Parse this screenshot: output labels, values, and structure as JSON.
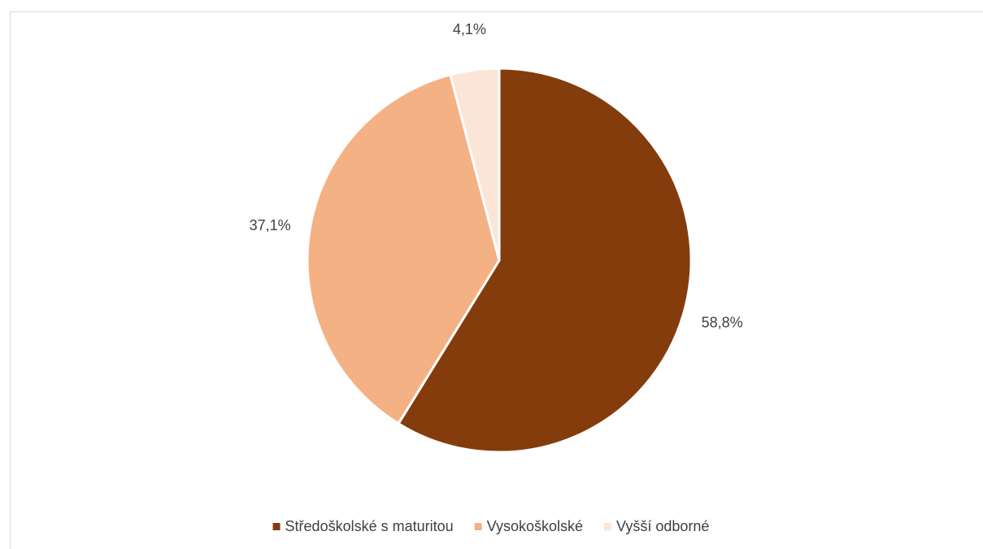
{
  "chart_data": {
    "type": "pie",
    "categories": [
      "Středoškolské s maturitou",
      "Vysokoškolské",
      "Vyšší odborné"
    ],
    "values": [
      58.8,
      37.1,
      4.1
    ],
    "value_labels": [
      "58,8%",
      "37,1%",
      "4,1%"
    ],
    "colors": [
      "#843c0c",
      "#f4b183",
      "#fbe5d6"
    ],
    "legend": "bottom"
  }
}
